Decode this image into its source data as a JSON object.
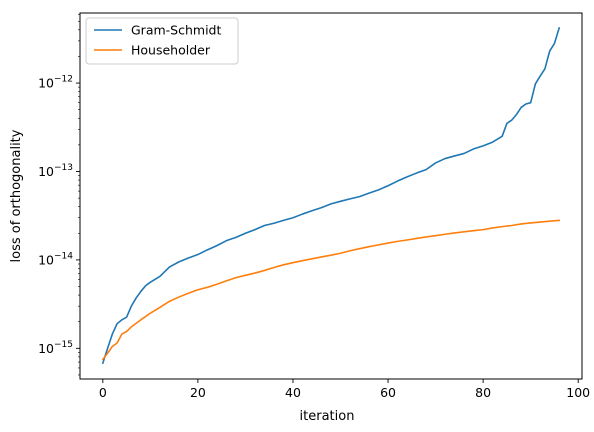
{
  "chart_data": {
    "type": "line",
    "title": "",
    "xlabel": "iteration",
    "ylabel": "loss of orthogonality",
    "xlim": [
      -4.8,
      100.8
    ],
    "ylim": [
      4.5e-16,
      6.2e-12
    ],
    "yscale": "log",
    "grid": false,
    "legend_position": "upper-left",
    "x_ticks": [
      0,
      20,
      40,
      60,
      80,
      100
    ],
    "x_tick_labels": [
      "0",
      "20",
      "40",
      "60",
      "80",
      "100"
    ],
    "y_ticks": [
      1e-15,
      1e-14,
      1e-13,
      1e-12
    ],
    "y_tick_labels": [
      {
        "base": "10",
        "exp": "−15"
      },
      {
        "base": "10",
        "exp": "−14"
      },
      {
        "base": "10",
        "exp": "−13"
      },
      {
        "base": "10",
        "exp": "−12"
      }
    ],
    "series": [
      {
        "name": "Gram-Schmidt",
        "color": "#1f77b4",
        "points": [
          [
            0,
            6.8e-16
          ],
          [
            1,
            1e-15
          ],
          [
            2,
            1.45e-15
          ],
          [
            3,
            1.9e-15
          ],
          [
            4,
            2.1e-15
          ],
          [
            5,
            2.25e-15
          ],
          [
            6,
            3e-15
          ],
          [
            7,
            3.7e-15
          ],
          [
            8,
            4.4e-15
          ],
          [
            9,
            5.1e-15
          ],
          [
            10,
            5.6e-15
          ],
          [
            12,
            6.5e-15
          ],
          [
            14,
            8.3e-15
          ],
          [
            16,
            9.5e-15
          ],
          [
            18,
            1.05e-14
          ],
          [
            20,
            1.15e-14
          ],
          [
            22,
            1.3e-14
          ],
          [
            24,
            1.45e-14
          ],
          [
            26,
            1.65e-14
          ],
          [
            28,
            1.8e-14
          ],
          [
            30,
            2e-14
          ],
          [
            32,
            2.2e-14
          ],
          [
            34,
            2.45e-14
          ],
          [
            36,
            2.6e-14
          ],
          [
            38,
            2.8e-14
          ],
          [
            40,
            3e-14
          ],
          [
            42,
            3.3e-14
          ],
          [
            44,
            3.6e-14
          ],
          [
            46,
            3.9e-14
          ],
          [
            48,
            4.3e-14
          ],
          [
            50,
            4.6e-14
          ],
          [
            52,
            4.9e-14
          ],
          [
            54,
            5.2e-14
          ],
          [
            56,
            5.7e-14
          ],
          [
            58,
            6.2e-14
          ],
          [
            60,
            6.9e-14
          ],
          [
            62,
            7.8e-14
          ],
          [
            64,
            8.7e-14
          ],
          [
            66,
            9.6e-14
          ],
          [
            68,
            1.05e-13
          ],
          [
            70,
            1.25e-13
          ],
          [
            72,
            1.4e-13
          ],
          [
            74,
            1.5e-13
          ],
          [
            76,
            1.6e-13
          ],
          [
            78,
            1.8e-13
          ],
          [
            80,
            1.95e-13
          ],
          [
            82,
            2.15e-13
          ],
          [
            84,
            2.5e-13
          ],
          [
            85,
            3.5e-13
          ],
          [
            86,
            3.8e-13
          ],
          [
            87,
            4.4e-13
          ],
          [
            88,
            5.3e-13
          ],
          [
            89,
            5.8e-13
          ],
          [
            90,
            6e-13
          ],
          [
            91,
            9.8e-13
          ],
          [
            92,
            1.2e-12
          ],
          [
            93,
            1.45e-12
          ],
          [
            94,
            2.3e-12
          ],
          [
            95,
            2.8e-12
          ],
          [
            96,
            4.2e-12
          ]
        ]
      },
      {
        "name": "Householder",
        "color": "#ff7f0e",
        "points": [
          [
            0,
            7.5e-16
          ],
          [
            1,
            8.8e-16
          ],
          [
            2,
            1.05e-15
          ],
          [
            3,
            1.15e-15
          ],
          [
            4,
            1.45e-15
          ],
          [
            5,
            1.55e-15
          ],
          [
            6,
            1.75e-15
          ],
          [
            8,
            2.1e-15
          ],
          [
            10,
            2.5e-15
          ],
          [
            12,
            2.9e-15
          ],
          [
            14,
            3.4e-15
          ],
          [
            16,
            3.8e-15
          ],
          [
            18,
            4.2e-15
          ],
          [
            20,
            4.6e-15
          ],
          [
            22,
            4.9e-15
          ],
          [
            24,
            5.3e-15
          ],
          [
            26,
            5.8e-15
          ],
          [
            28,
            6.3e-15
          ],
          [
            30,
            6.7e-15
          ],
          [
            32,
            7.1e-15
          ],
          [
            34,
            7.6e-15
          ],
          [
            36,
            8.2e-15
          ],
          [
            38,
            8.8e-15
          ],
          [
            40,
            9.3e-15
          ],
          [
            42,
            9.8e-15
          ],
          [
            44,
            1.03e-14
          ],
          [
            46,
            1.08e-14
          ],
          [
            48,
            1.13e-14
          ],
          [
            50,
            1.19e-14
          ],
          [
            52,
            1.27e-14
          ],
          [
            54,
            1.34e-14
          ],
          [
            56,
            1.41e-14
          ],
          [
            58,
            1.48e-14
          ],
          [
            60,
            1.55e-14
          ],
          [
            62,
            1.62e-14
          ],
          [
            64,
            1.68e-14
          ],
          [
            66,
            1.75e-14
          ],
          [
            68,
            1.82e-14
          ],
          [
            70,
            1.88e-14
          ],
          [
            72,
            1.95e-14
          ],
          [
            74,
            2.02e-14
          ],
          [
            76,
            2.08e-14
          ],
          [
            78,
            2.14e-14
          ],
          [
            80,
            2.2e-14
          ],
          [
            82,
            2.3e-14
          ],
          [
            84,
            2.38e-14
          ],
          [
            86,
            2.45e-14
          ],
          [
            88,
            2.55e-14
          ],
          [
            90,
            2.62e-14
          ],
          [
            92,
            2.68e-14
          ],
          [
            94,
            2.74e-14
          ],
          [
            96,
            2.8e-14
          ]
        ]
      }
    ]
  }
}
